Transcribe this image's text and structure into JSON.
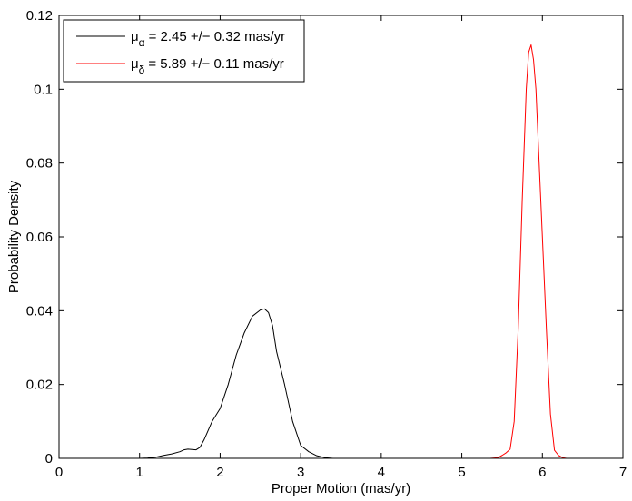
{
  "chart_data": {
    "type": "line",
    "title": "",
    "xlabel": "Proper Motion (mas/yr)",
    "ylabel": "Probability Density",
    "xlim": [
      0,
      7
    ],
    "ylim": [
      0,
      0.12
    ],
    "xticks": [
      "0",
      "1",
      "2",
      "3",
      "4",
      "5",
      "6",
      "7"
    ],
    "yticks": [
      "0",
      "0.02",
      "0.04",
      "0.06",
      "0.08",
      "0.1",
      "0.12"
    ],
    "grid": false,
    "legend_position": "top-left",
    "series": [
      {
        "name": "μα = 2.45 +/− 0.32 mas/yr",
        "legend_symbol": "μ",
        "legend_subscript": "α",
        "legend_rest": "= 2.45 +/− 0.32 mas/yr",
        "color": "#000000",
        "x": [
          1.0,
          1.1,
          1.2,
          1.3,
          1.4,
          1.5,
          1.55,
          1.6,
          1.7,
          1.75,
          1.8,
          1.9,
          2.0,
          2.1,
          2.15,
          2.2,
          2.3,
          2.4,
          2.5,
          2.55,
          2.6,
          2.65,
          2.7,
          2.8,
          2.9,
          3.0,
          3.1,
          3.2,
          3.3,
          3.4,
          3.5
        ],
        "y": [
          0.0,
          0.0001,
          0.0003,
          0.0008,
          0.0012,
          0.0018,
          0.0023,
          0.0025,
          0.0023,
          0.003,
          0.005,
          0.01,
          0.0135,
          0.02,
          0.024,
          0.028,
          0.034,
          0.0385,
          0.0402,
          0.0405,
          0.0395,
          0.036,
          0.029,
          0.02,
          0.01,
          0.0035,
          0.0018,
          0.0007,
          0.0002,
          0.0,
          0.0
        ]
      },
      {
        "name": "μδ = 5.89 +/− 0.11 mas/yr",
        "legend_symbol": "μ",
        "legend_subscript": "δ",
        "legend_rest": "= 5.89 +/− 0.11 mas/yr",
        "color": "#ff0000",
        "x": [
          5.35,
          5.45,
          5.5,
          5.55,
          5.6,
          5.65,
          5.7,
          5.75,
          5.8,
          5.83,
          5.86,
          5.89,
          5.92,
          5.95,
          6.0,
          6.05,
          6.1,
          6.15,
          6.2,
          6.25,
          6.3,
          6.35
        ],
        "y": [
          0.0,
          0.0002,
          0.0008,
          0.0015,
          0.0025,
          0.01,
          0.035,
          0.07,
          0.1,
          0.11,
          0.112,
          0.108,
          0.1,
          0.085,
          0.06,
          0.035,
          0.012,
          0.0022,
          0.0008,
          0.0002,
          0.0,
          0.0
        ]
      }
    ]
  }
}
